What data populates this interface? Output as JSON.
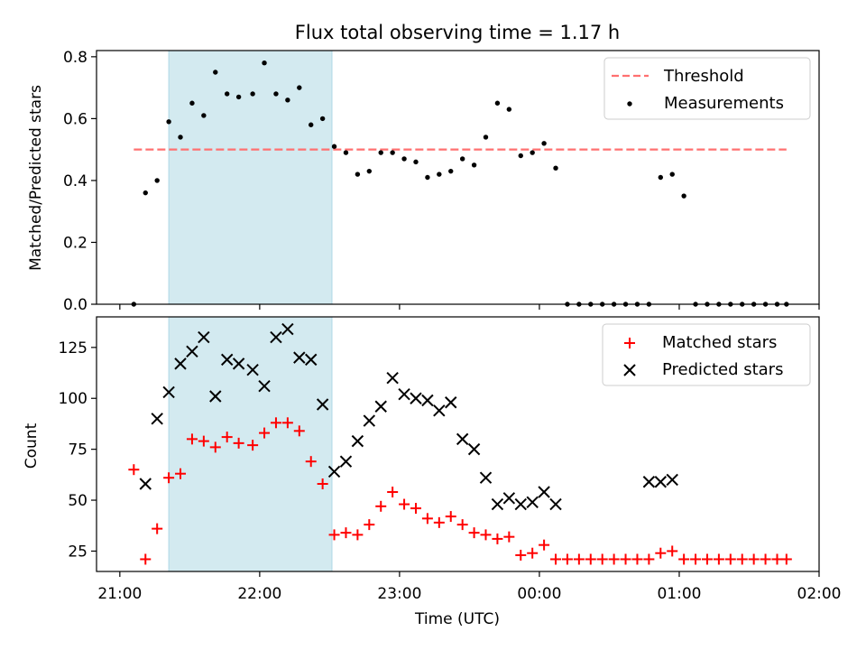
{
  "figure": {
    "title": "Flux total observing time = 1.17 h",
    "xlabel": "Time (UTC)"
  },
  "chart_data": [
    {
      "type": "scatter",
      "ylabel": "Matched/Predicted stars",
      "ylim": [
        0,
        0.82
      ],
      "yticks": [
        0.0,
        0.2,
        0.4,
        0.6,
        0.8
      ],
      "ytick_labels": [
        "0.0",
        "0.2",
        "0.4",
        "0.6",
        "0.8"
      ],
      "x_unit": "minutes after 21:00 UTC",
      "xlim": [
        -10,
        300
      ],
      "xticks": [
        0,
        60,
        120,
        180,
        240,
        300
      ],
      "xtick_labels": [
        "21:00",
        "22:00",
        "23:00",
        "00:00",
        "01:00",
        "02:00"
      ],
      "highlight_span": [
        21,
        91
      ],
      "highlight_color": "#d3eaf0",
      "threshold": {
        "name": "Threshold",
        "y": 0.5,
        "x_range": [
          6,
          286
        ],
        "color": "#ff7070"
      },
      "series": [
        {
          "name": "Measurements",
          "color": "#000000",
          "marker": "dot",
          "x": [
            6,
            11,
            16,
            21,
            26,
            31,
            36,
            41,
            46,
            51,
            57,
            62,
            67,
            72,
            77,
            82,
            87,
            92,
            97,
            102,
            107,
            112,
            117,
            122,
            127,
            132,
            137,
            142,
            147,
            152,
            157,
            162,
            167,
            172,
            177,
            182,
            187,
            192,
            197,
            202,
            207,
            212,
            217,
            222,
            227,
            232,
            237,
            242,
            247,
            252,
            257,
            262,
            267,
            272,
            277,
            282,
            286
          ],
          "y": [
            0.0,
            0.36,
            0.4,
            0.59,
            0.54,
            0.65,
            0.61,
            0.75,
            0.68,
            0.67,
            0.68,
            0.78,
            0.68,
            0.66,
            0.7,
            0.58,
            0.6,
            0.51,
            0.49,
            0.42,
            0.43,
            0.49,
            0.49,
            0.47,
            0.46,
            0.41,
            0.42,
            0.43,
            0.47,
            0.45,
            0.54,
            0.65,
            0.63,
            0.48,
            0.49,
            0.52,
            0.44,
            0.0,
            0.0,
            0.0,
            0.0,
            0.0,
            0.0,
            0.0,
            0.0,
            0.41,
            0.42,
            0.35,
            0.0,
            0.0,
            0.0,
            0.0,
            0.0,
            0.0,
            0.0,
            0.0,
            0.0
          ]
        }
      ],
      "legend": [
        "Threshold",
        "Measurements"
      ],
      "legend_position": "upper right"
    },
    {
      "type": "scatter",
      "ylabel": "Count",
      "ylim": [
        15,
        140
      ],
      "yticks": [
        25,
        50,
        75,
        100,
        125
      ],
      "ytick_labels": [
        "25",
        "50",
        "75",
        "100",
        "125"
      ],
      "x_unit": "minutes after 21:00 UTC",
      "xlim": [
        -10,
        300
      ],
      "xticks": [
        0,
        60,
        120,
        180,
        240,
        300
      ],
      "xtick_labels": [
        "21:00",
        "22:00",
        "23:00",
        "00:00",
        "01:00",
        "02:00"
      ],
      "highlight_span": [
        21,
        91
      ],
      "highlight_color": "#d3eaf0",
      "series": [
        {
          "name": "Matched stars",
          "color": "#ff0000",
          "marker": "plus",
          "x": [
            6,
            11,
            16,
            21,
            26,
            31,
            36,
            41,
            46,
            51,
            57,
            62,
            67,
            72,
            77,
            82,
            87,
            92,
            97,
            102,
            107,
            112,
            117,
            122,
            127,
            132,
            137,
            142,
            147,
            152,
            157,
            162,
            167,
            172,
            177,
            182,
            187,
            192,
            197,
            202,
            207,
            212,
            217,
            222,
            227,
            232,
            237,
            242,
            247,
            252,
            257,
            262,
            267,
            272,
            277,
            282,
            286
          ],
          "y": [
            65,
            21,
            36,
            61,
            63,
            80,
            79,
            76,
            81,
            78,
            77,
            83,
            88,
            88,
            84,
            69,
            58,
            33,
            34,
            33,
            38,
            47,
            54,
            48,
            46,
            41,
            39,
            42,
            38,
            34,
            33,
            31,
            32,
            23,
            24,
            28,
            21,
            21,
            21,
            21,
            21,
            21,
            21,
            21,
            21,
            24,
            25,
            21,
            21,
            21,
            21,
            21,
            21,
            21,
            21,
            21,
            21
          ]
        },
        {
          "name": "Predicted stars",
          "color": "#000000",
          "marker": "x",
          "x": [
            11,
            16,
            21,
            26,
            31,
            36,
            41,
            46,
            51,
            57,
            62,
            67,
            72,
            77,
            82,
            87,
            92,
            97,
            102,
            107,
            112,
            117,
            122,
            127,
            132,
            137,
            142,
            147,
            152,
            157,
            162,
            167,
            172,
            177,
            182,
            187,
            227,
            232,
            237
          ],
          "y": [
            58,
            90,
            103,
            117,
            123,
            130,
            101,
            119,
            117,
            114,
            106,
            130,
            134,
            120,
            119,
            97,
            64,
            69,
            79,
            89,
            96,
            110,
            102,
            100,
            99,
            94,
            98,
            80,
            75,
            61,
            48,
            51,
            48,
            49,
            54,
            48,
            59,
            59,
            60
          ]
        }
      ],
      "legend": [
        "Matched stars",
        "Predicted stars"
      ],
      "legend_position": "upper right"
    }
  ]
}
